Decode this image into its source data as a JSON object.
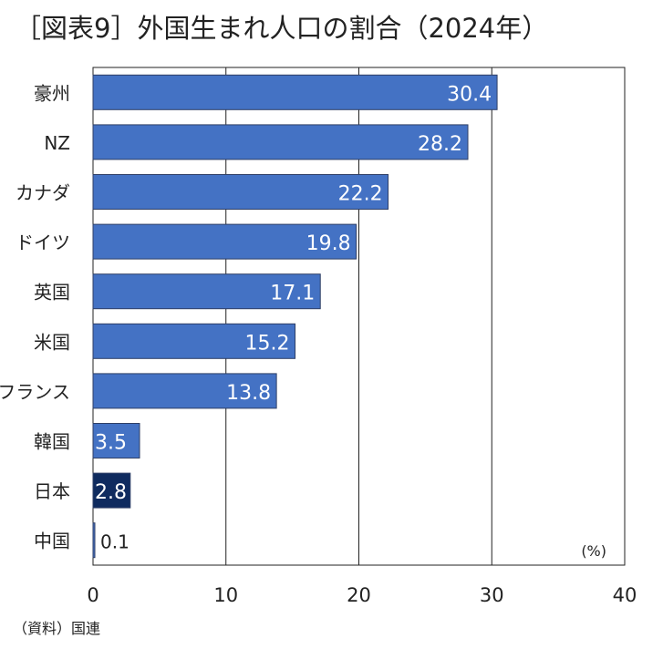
{
  "title": "［図表9］外国生まれ人口の割合（2024年）",
  "source": "（資料）国連",
  "chart_data": {
    "type": "bar",
    "orientation": "horizontal",
    "title": "［図表9］外国生まれ人口の割合（2024年）",
    "unit_label": "(%)",
    "categories": [
      "豪州",
      "NZ",
      "カナダ",
      "ドイツ",
      "英国",
      "米国",
      "フランス",
      "韓国",
      "日本",
      "中国"
    ],
    "values": [
      30.4,
      28.2,
      22.2,
      19.8,
      17.1,
      15.2,
      13.8,
      3.5,
      2.8,
      0.1
    ],
    "value_labels": [
      "30.4",
      "28.2",
      "22.2",
      "19.8",
      "17.1",
      "15.2",
      "13.8",
      "3.5",
      "2.8",
      "0.1"
    ],
    "xlim": [
      0,
      40
    ],
    "xticks": [
      0,
      10,
      20,
      30,
      40
    ],
    "xtick_labels": [
      "0",
      "10",
      "20",
      "30",
      "40"
    ],
    "grid": "vertical",
    "colors": {
      "default": "#4472c4",
      "highlight": "#0f2b5f",
      "border": "#2f3f66"
    },
    "highlight_category": "日本"
  }
}
